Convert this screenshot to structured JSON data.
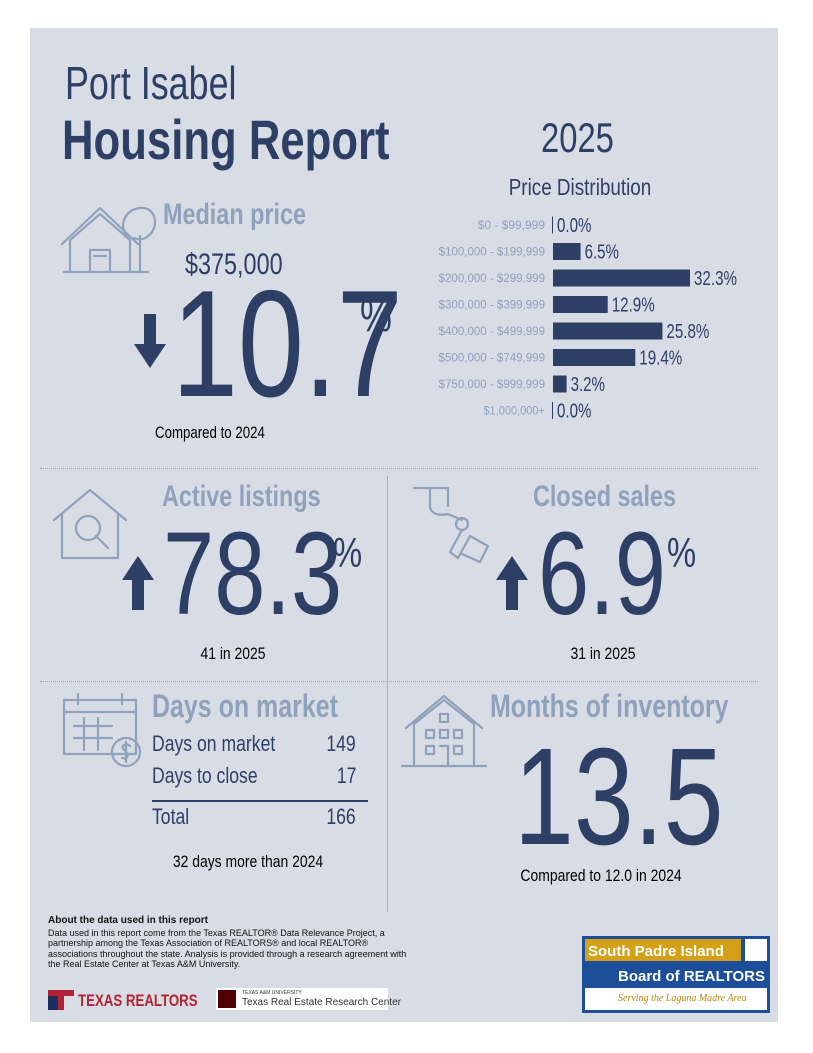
{
  "header": {
    "location": "Port Isabel",
    "title": "Housing Report",
    "year": "2025"
  },
  "median_price": {
    "label": "Median price",
    "price": "$375,000",
    "change": "10.7",
    "unit": "%",
    "direction": "down",
    "comparison": "Compared to 2024"
  },
  "price_distribution": {
    "title": "Price Distribution",
    "categories": [
      "$0 - $99,999",
      "$100,000 - $199,999",
      "$200,000 - $299,999",
      "$300,000 - $399,999",
      "$400,000 - $499,999",
      "$500,000 - $749,999",
      "$750,000 - $999,999",
      "$1,000,000+"
    ],
    "values": [
      0,
      6.5,
      32.3,
      12.9,
      25.8,
      19.4,
      3.2,
      0
    ],
    "value_labels": [
      "0.0%",
      "6.5%",
      "32.3%",
      "12.9%",
      "25.8%",
      "19.4%",
      "3.2%",
      "0.0%"
    ],
    "color": "#2e3f66"
  },
  "active_listings": {
    "label": "Active listings",
    "change": "78.3",
    "unit": "%",
    "direction": "up",
    "note": "41 in 2025"
  },
  "closed_sales": {
    "label": "Closed sales",
    "change": "6.9",
    "unit": "%",
    "direction": "up",
    "note": "31 in 2025"
  },
  "days_on_market": {
    "label": "Days on market",
    "rows": [
      [
        "Days on market",
        "149"
      ],
      [
        "Days to close",
        "17"
      ],
      [
        "Total",
        "166"
      ]
    ],
    "note": "32 days more than 2024"
  },
  "months_of_inventory": {
    "label": "Months of inventory",
    "value": "13.5",
    "note": "Compared to 12.0 in 2024"
  },
  "footer": {
    "about_title": "About the data used in this report",
    "about_text": "Data used in this report come from the Texas REALTOR® Data Relevance Project, a partnership among the Texas Association of REALTORS® and local REALTOR® associations throughout the state. Analysis is provided through a research agreement with the Real Estate Center at Texas A&M University.",
    "texas_realtors": "TEXAS REALTORS",
    "tamu_small": "TEXAS A&M UNIVERSITY",
    "tamu": "Texas Real Estate Research Center",
    "spi_line1": "South Padre Island",
    "spi_line2": "Board of REALTORS",
    "spi_tagline": "Serving the Laguna Madre Area"
  }
}
